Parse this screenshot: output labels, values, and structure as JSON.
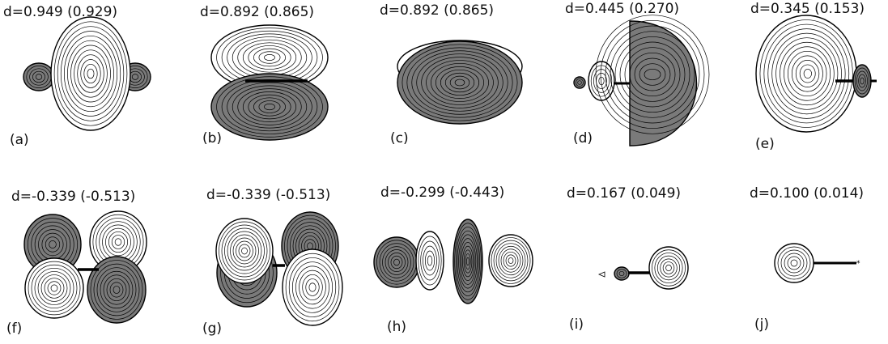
{
  "colors": {
    "positive_fill": "#7a7a7a",
    "negative_fill": "#ffffff",
    "line": "#000000"
  },
  "panels": [
    {
      "id": "a",
      "letter": "(a)",
      "d_label": "d=0.949  (0.929)"
    },
    {
      "id": "b",
      "letter": "(b)",
      "d_label": "d=0.892  (0.865)"
    },
    {
      "id": "c",
      "letter": "(c)",
      "d_label": "d=0.892  (0.865)"
    },
    {
      "id": "d",
      "letter": "(d)",
      "d_label": "d=0.445  (0.270)"
    },
    {
      "id": "e",
      "letter": "(e)",
      "d_label": "d=0.345  (0.153)"
    },
    {
      "id": "f",
      "letter": "(f)",
      "d_label": "d=-0.339  (-0.513)"
    },
    {
      "id": "g",
      "letter": "(g)",
      "d_label": "d=-0.339  (-0.513)"
    },
    {
      "id": "h",
      "letter": "(h)",
      "d_label": "d=-0.299  (-0.443)"
    },
    {
      "id": "i",
      "letter": "(i)",
      "d_label": "d=0.167  (0.049)"
    },
    {
      "id": "j",
      "letter": "(j)",
      "d_label": "d=0.100  (0.014)"
    }
  ]
}
